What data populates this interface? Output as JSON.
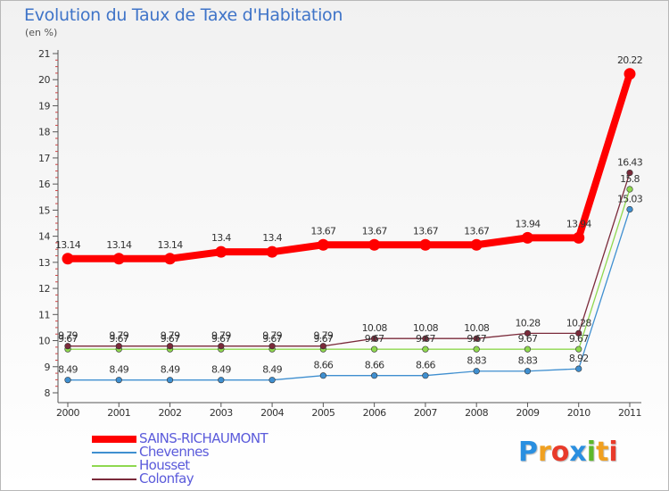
{
  "title": "Evolution du Taux de Taxe d'Habitation",
  "subtitle": "(en %)",
  "brand": {
    "letters": [
      {
        "ch": "P",
        "color": "#2a8fe0"
      },
      {
        "ch": "r",
        "color": "#f0a020"
      },
      {
        "ch": "o",
        "color": "#e83a2a"
      },
      {
        "ch": "x",
        "color": "#2a8fe0"
      },
      {
        "ch": "i",
        "color": "#5cb82a"
      },
      {
        "ch": "t",
        "color": "#f0a020"
      },
      {
        "ch": "i",
        "color": "#e83a2a"
      }
    ]
  },
  "chart_data": {
    "type": "line",
    "title": "Evolution du Taux de Taxe d'Habitation",
    "ylabel": "(en %)",
    "xlabel": "",
    "x": [
      "2000",
      "2001",
      "2002",
      "2003",
      "2004",
      "2005",
      "2006",
      "2007",
      "2008",
      "2009",
      "2010",
      "2011"
    ],
    "ylim": [
      8,
      21
    ],
    "yticks": [
      "8",
      "9",
      "10",
      "11",
      "12",
      "13",
      "14",
      "15",
      "16",
      "17",
      "18",
      "19",
      "20",
      "21"
    ],
    "grid": false,
    "legend_position": "bottom-left",
    "series": [
      {
        "name": "SAINS-RICHAUMONT",
        "color": "#ff0000",
        "thick": true,
        "values": [
          13.14,
          13.14,
          13.14,
          13.4,
          13.4,
          13.67,
          13.67,
          13.67,
          13.67,
          13.94,
          13.94,
          20.22
        ],
        "labels": [
          "13.14",
          "13.14",
          "13.14",
          "13.4",
          "13.4",
          "13.67",
          "13.67",
          "13.67",
          "13.67",
          "13.94",
          "13.94",
          "20.22"
        ]
      },
      {
        "name": "Chevennes",
        "color": "#3f8fd0",
        "values": [
          8.49,
          8.49,
          8.49,
          8.49,
          8.49,
          8.66,
          8.66,
          8.66,
          8.83,
          8.83,
          8.92,
          15.03
        ],
        "labels": [
          "8.49",
          "8.49",
          "8.49",
          "8.49",
          "8.49",
          "8.66",
          "8.66",
          "8.66",
          "8.83",
          "8.83",
          "8.92",
          "15.03"
        ]
      },
      {
        "name": "Housset",
        "color": "#8fd84f",
        "values": [
          9.67,
          9.67,
          9.67,
          9.67,
          9.67,
          9.67,
          9.67,
          9.67,
          9.67,
          9.67,
          9.67,
          15.8
        ],
        "labels": [
          "9.67",
          "9.67",
          "9.67",
          "9.67",
          "9.67",
          "9.67",
          "9.67",
          "9.67",
          "9.67",
          "9.67",
          "9.67",
          "15.8"
        ]
      },
      {
        "name": "Colonfay",
        "color": "#7a2a3a",
        "values": [
          9.79,
          9.79,
          9.79,
          9.79,
          9.79,
          9.79,
          10.08,
          10.08,
          10.08,
          10.28,
          10.28,
          16.43
        ],
        "labels": [
          "9.79",
          "9.79",
          "9.79",
          "9.79",
          "9.79",
          "9.79",
          "10.08",
          "10.08",
          "10.08",
          "10.28",
          "10.28",
          "16.43"
        ]
      }
    ]
  }
}
